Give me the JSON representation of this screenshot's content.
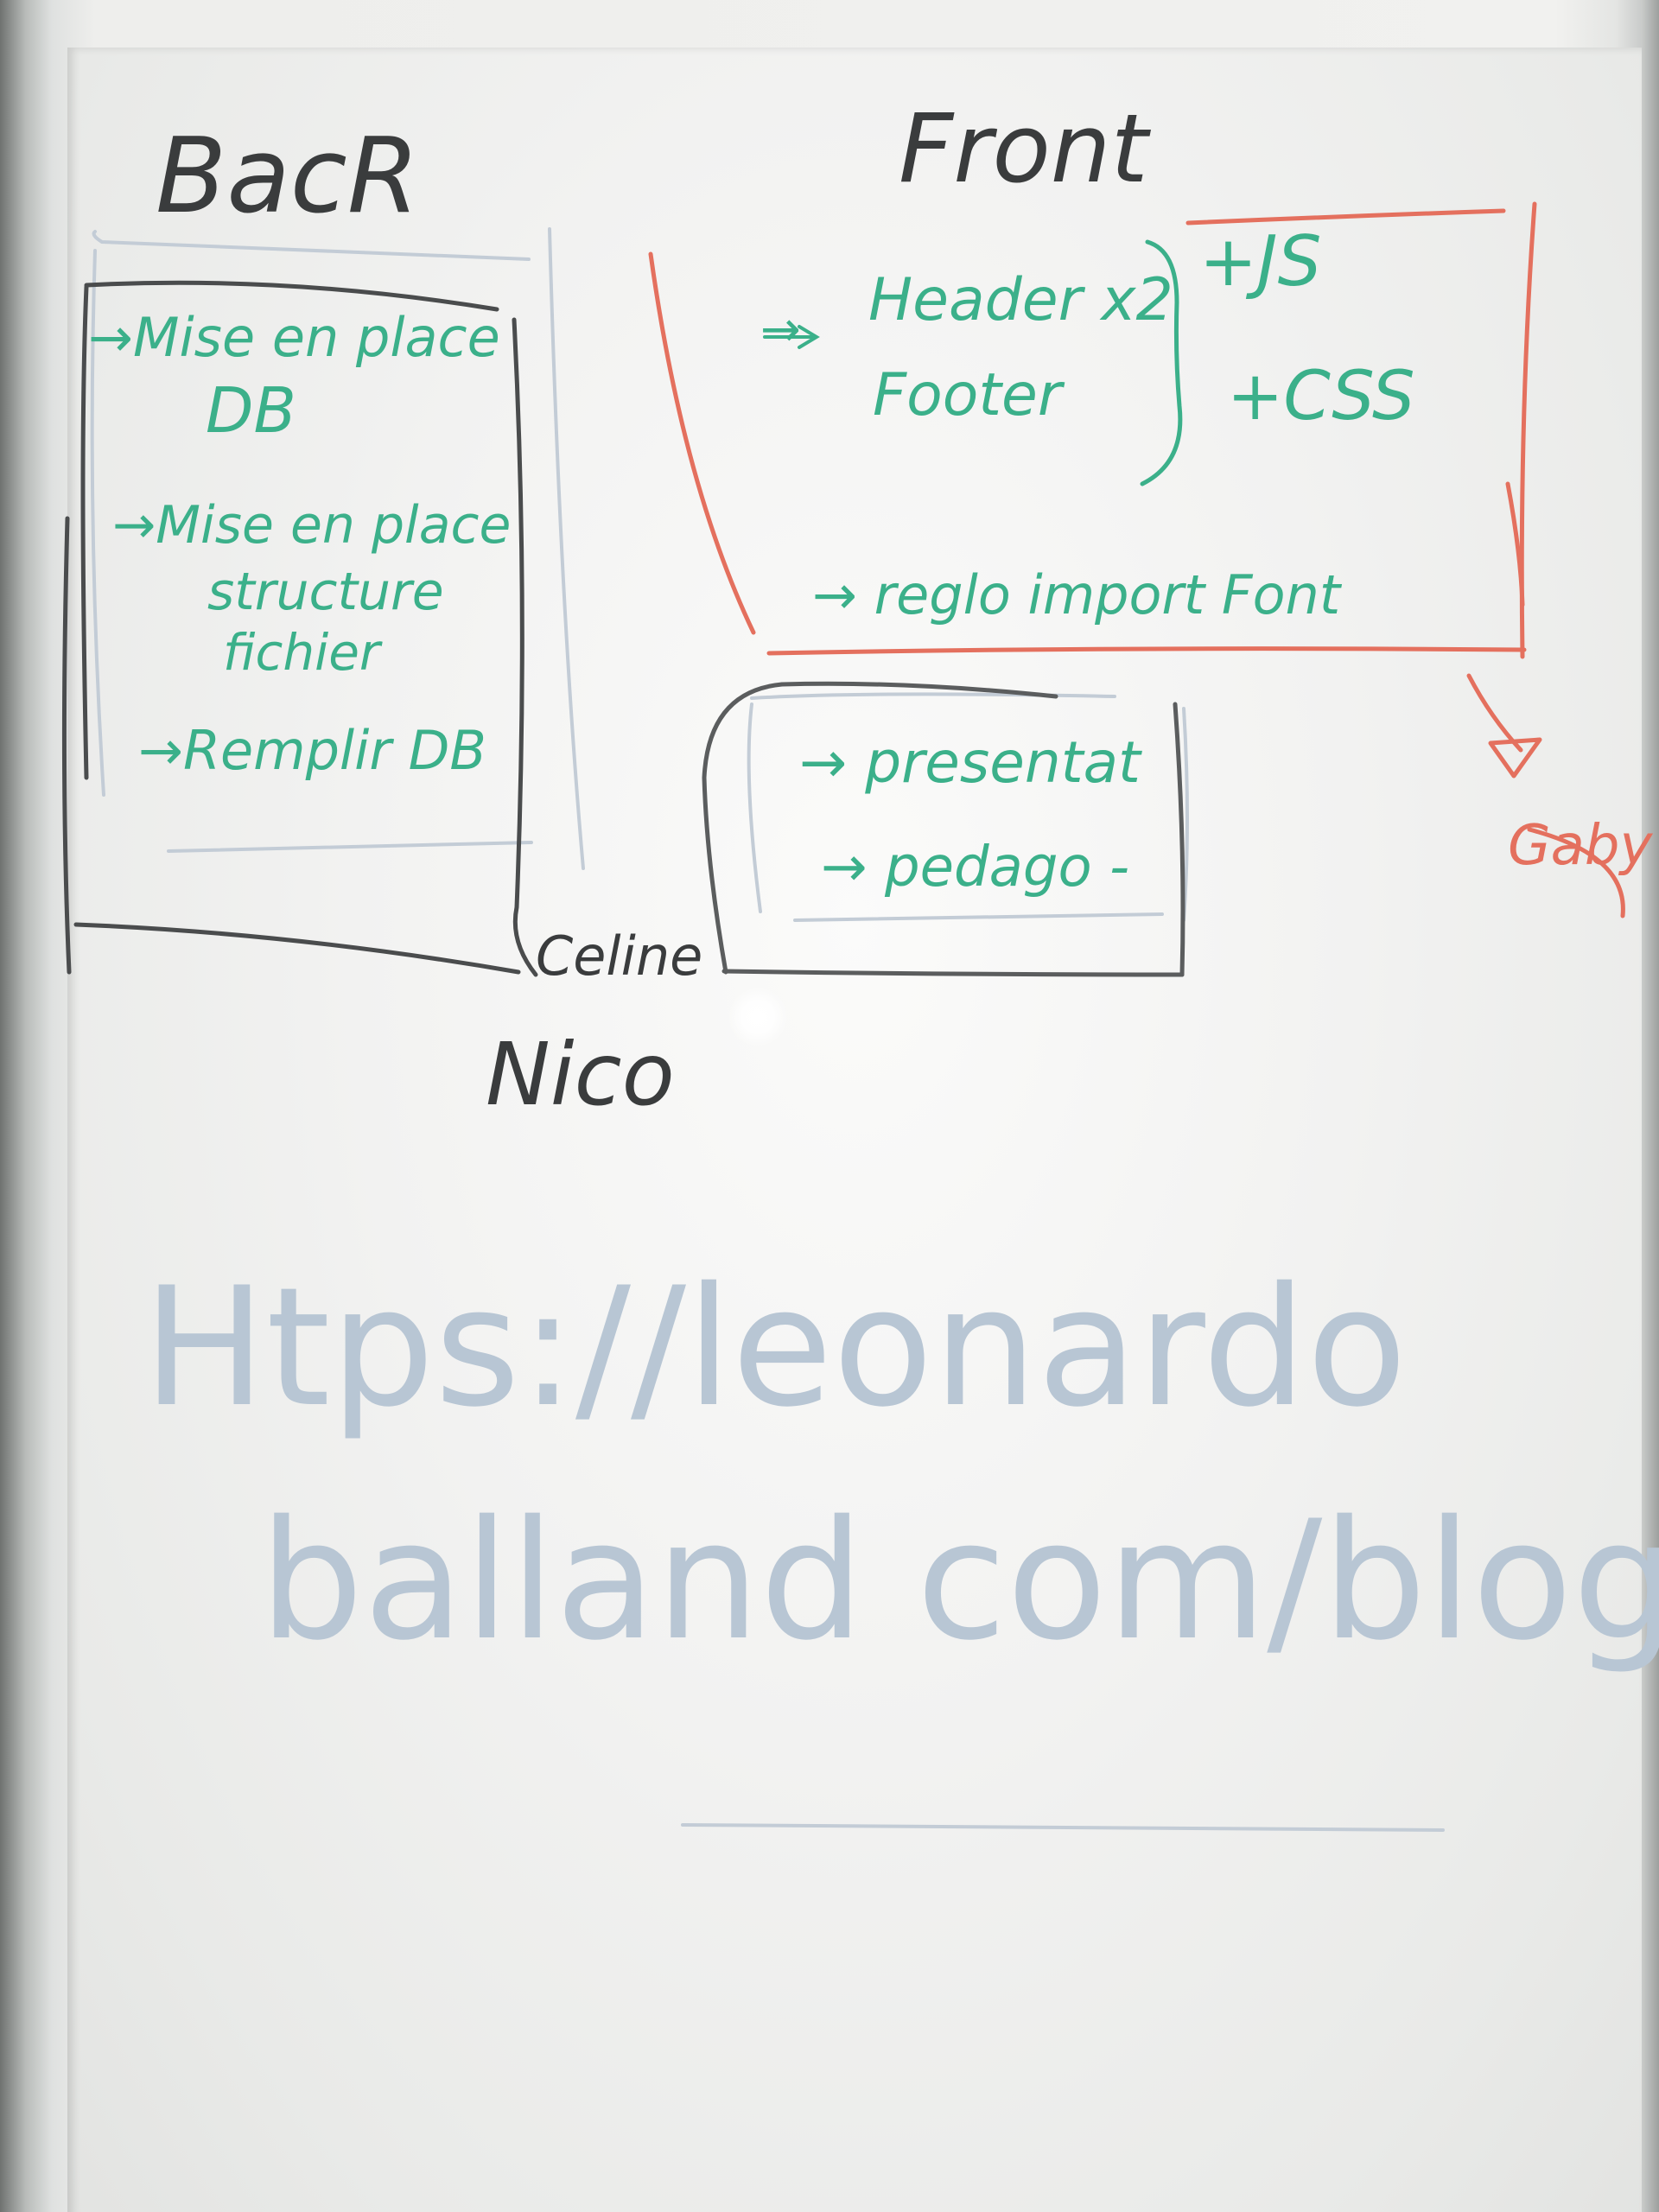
{
  "whiteboard": {
    "back": {
      "title": "BacR",
      "items": [
        "→Mise en place",
        "DB",
        "→Mise en place",
        "structure",
        "fichier",
        "→Remplir DB"
      ],
      "owner": "Nico"
    },
    "front": {
      "title": "Front",
      "items": [
        "→",
        "Header x2",
        "Footer",
        "+JS",
        "+CSS",
        "→ reglo import Font"
      ],
      "owner": "Gaby"
    },
    "middle": {
      "items": [
        "→ presentat",
        "→ pedago -"
      ],
      "owner": "Celine"
    },
    "url": {
      "line1": "Htps://leonardo",
      "line2": "balland com/blog"
    }
  },
  "colors": {
    "black_marker": "#3a3c3d",
    "green_marker": "#3bb08a",
    "red_marker": "#e4705e",
    "faded_blue": "#b8c6d4",
    "board": "#f2f2f1"
  }
}
